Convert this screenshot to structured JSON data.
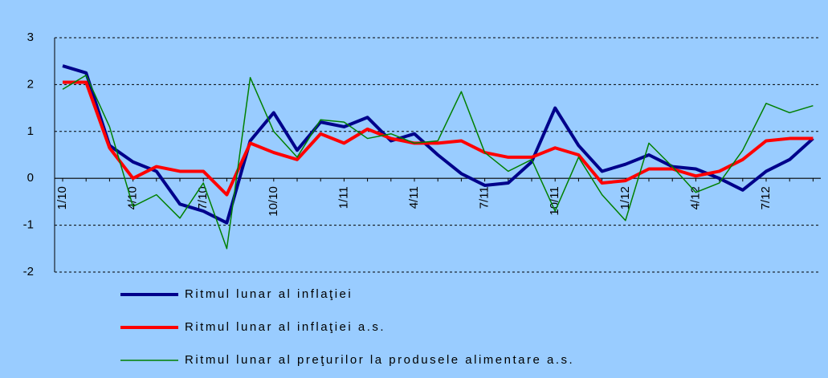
{
  "chart_data": {
    "type": "line",
    "categories": [
      "1/10",
      null,
      null,
      "4/10",
      null,
      null,
      "7/10",
      null,
      null,
      "10/10",
      null,
      null,
      "1/11",
      null,
      null,
      "4/11",
      null,
      null,
      "7/11",
      null,
      null,
      "10/11",
      null,
      null,
      "1/12",
      null,
      null,
      "4/12",
      null,
      null,
      "7/12",
      null,
      null
    ],
    "series": [
      {
        "name": "Ritmul lunar al inflaţiei",
        "color": "#00008b",
        "width": 4,
        "values": [
          2.4,
          2.25,
          0.7,
          0.35,
          0.15,
          -0.55,
          -0.7,
          -0.95,
          0.8,
          1.4,
          0.6,
          1.2,
          1.1,
          1.3,
          0.8,
          0.95,
          0.5,
          0.1,
          -0.15,
          -0.1,
          0.35,
          1.5,
          0.7,
          0.15,
          0.3,
          0.5,
          0.25,
          0.2,
          0.0,
          -0.25,
          0.15,
          0.4,
          0.85
        ]
      },
      {
        "name": "Ritmul lunar al inflaţiei a.s.",
        "color": "#ff0000",
        "width": 4,
        "values": [
          2.05,
          2.05,
          0.65,
          0.0,
          0.25,
          0.15,
          0.15,
          -0.35,
          0.75,
          0.55,
          0.4,
          0.95,
          0.75,
          1.05,
          0.85,
          0.75,
          0.75,
          0.8,
          0.55,
          0.45,
          0.45,
          0.65,
          0.5,
          -0.1,
          -0.05,
          0.2,
          0.2,
          0.05,
          0.15,
          0.4,
          0.8,
          0.85,
          0.85
        ]
      },
      {
        "name": "Ritmul lunar al preţurilor la produsele alimentare a.s.",
        "color": "#008000",
        "width": 1.5,
        "values": [
          1.9,
          2.2,
          1.1,
          -0.6,
          -0.35,
          -0.85,
          -0.1,
          -1.5,
          2.15,
          1.0,
          0.45,
          1.25,
          1.2,
          0.85,
          0.95,
          0.75,
          0.8,
          1.85,
          0.55,
          0.15,
          0.4,
          -0.7,
          0.45,
          -0.35,
          -0.9,
          0.75,
          0.25,
          -0.3,
          -0.1,
          0.6,
          1.6,
          1.4,
          1.55
        ]
      }
    ],
    "ylim": [
      -2,
      3
    ],
    "yticks": [
      -2,
      -1,
      0,
      1,
      2,
      3
    ],
    "grid": true
  }
}
